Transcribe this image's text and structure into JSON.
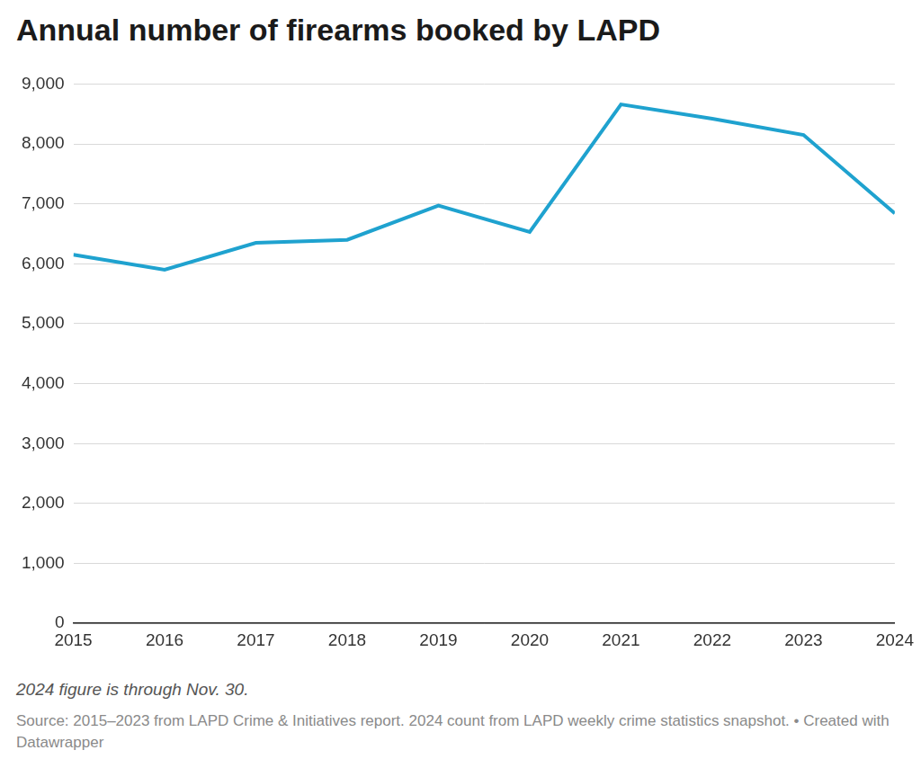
{
  "chart_data": {
    "type": "line",
    "title": "Annual number of firearms booked by LAPD",
    "note": "2024 figure is through Nov. 30.",
    "source": "Source: 2015–2023 from LAPD Crime & Initiatives report. 2024 count from LAPD weekly crime statistics snapshot. • Created with Datawrapper",
    "categories": [
      "2015",
      "2016",
      "2017",
      "2018",
      "2019",
      "2020",
      "2021",
      "2022",
      "2023",
      "2024"
    ],
    "values": [
      6150,
      5900,
      6350,
      6400,
      6970,
      6530,
      8660,
      8420,
      8150,
      6840
    ],
    "color": "#1fa2cf",
    "ylim": [
      0,
      9000
    ],
    "yticks": [
      0,
      {
        "value": 1000,
        "label": "1,000"
      },
      {
        "value": 2000,
        "label": "2,000"
      },
      {
        "value": 3000,
        "label": "3,000"
      },
      {
        "value": 4000,
        "label": "4,000"
      },
      {
        "value": 5000,
        "label": "5,000"
      },
      {
        "value": 6000,
        "label": "6,000"
      },
      {
        "value": 7000,
        "label": "7,000"
      },
      {
        "value": 8000,
        "label": "8,000"
      },
      {
        "value": 9000,
        "label": "9,000"
      }
    ],
    "grid": true
  }
}
